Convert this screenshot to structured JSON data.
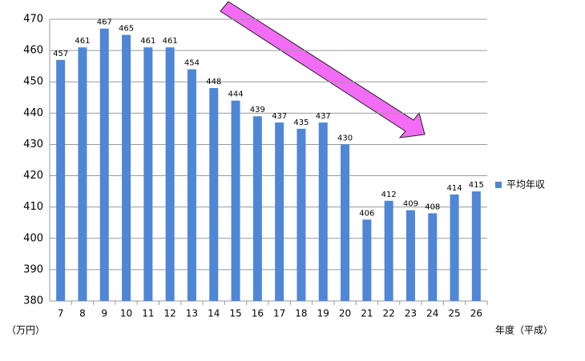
{
  "chart_data": {
    "type": "bar",
    "categories": [
      "7",
      "8",
      "9",
      "10",
      "11",
      "12",
      "13",
      "14",
      "15",
      "16",
      "17",
      "18",
      "19",
      "20",
      "21",
      "22",
      "23",
      "24",
      "25",
      "26"
    ],
    "series": [
      {
        "name": "平均年収",
        "color": "#4f86d6",
        "values": [
          457,
          461,
          467,
          465,
          461,
          461,
          454,
          448,
          444,
          439,
          437,
          435,
          437,
          430,
          406,
          412,
          409,
          408,
          414,
          415
        ]
      }
    ],
    "ylim": [
      380,
      470
    ],
    "yticks": [
      380,
      390,
      400,
      410,
      420,
      430,
      440,
      450,
      460,
      470
    ],
    "y_unit_label": "（万円）",
    "x_axis_label": "年度（平成）",
    "grid": true,
    "legend": "right"
  }
}
